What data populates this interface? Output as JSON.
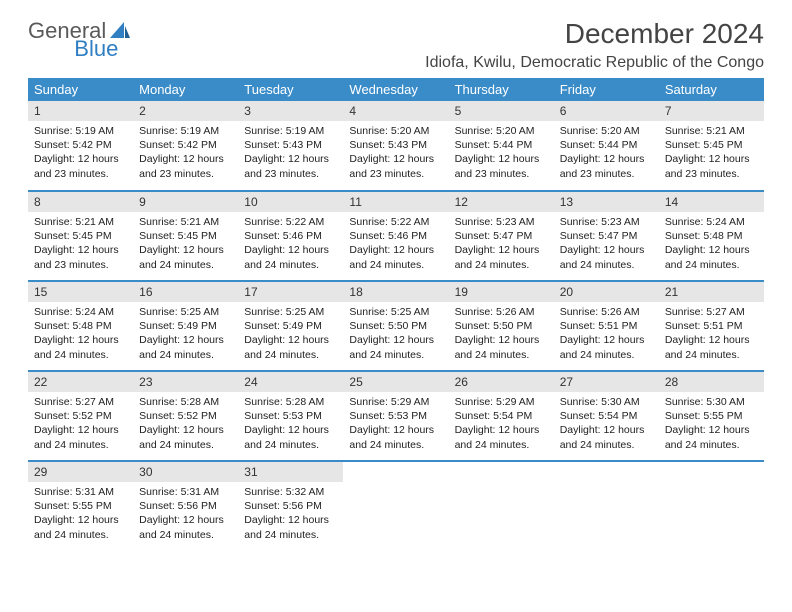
{
  "brand": {
    "part1": "General",
    "part2": "Blue"
  },
  "title": "December 2024",
  "location": "Idiofa, Kwilu, Democratic Republic of the Congo",
  "colors": {
    "header_bg": "#3a8cc9",
    "header_text": "#ffffff",
    "daynum_bg": "#e6e6e6",
    "rule": "#3a8cc9",
    "text": "#222222",
    "brand_blue": "#2f7fc2"
  },
  "weekdays": [
    "Sunday",
    "Monday",
    "Tuesday",
    "Wednesday",
    "Thursday",
    "Friday",
    "Saturday"
  ],
  "days": [
    {
      "n": "1",
      "sr": "5:19 AM",
      "ss": "5:42 PM",
      "dl": "12 hours and 23 minutes."
    },
    {
      "n": "2",
      "sr": "5:19 AM",
      "ss": "5:42 PM",
      "dl": "12 hours and 23 minutes."
    },
    {
      "n": "3",
      "sr": "5:19 AM",
      "ss": "5:43 PM",
      "dl": "12 hours and 23 minutes."
    },
    {
      "n": "4",
      "sr": "5:20 AM",
      "ss": "5:43 PM",
      "dl": "12 hours and 23 minutes."
    },
    {
      "n": "5",
      "sr": "5:20 AM",
      "ss": "5:44 PM",
      "dl": "12 hours and 23 minutes."
    },
    {
      "n": "6",
      "sr": "5:20 AM",
      "ss": "5:44 PM",
      "dl": "12 hours and 23 minutes."
    },
    {
      "n": "7",
      "sr": "5:21 AM",
      "ss": "5:45 PM",
      "dl": "12 hours and 23 minutes."
    },
    {
      "n": "8",
      "sr": "5:21 AM",
      "ss": "5:45 PM",
      "dl": "12 hours and 23 minutes."
    },
    {
      "n": "9",
      "sr": "5:21 AM",
      "ss": "5:45 PM",
      "dl": "12 hours and 24 minutes."
    },
    {
      "n": "10",
      "sr": "5:22 AM",
      "ss": "5:46 PM",
      "dl": "12 hours and 24 minutes."
    },
    {
      "n": "11",
      "sr": "5:22 AM",
      "ss": "5:46 PM",
      "dl": "12 hours and 24 minutes."
    },
    {
      "n": "12",
      "sr": "5:23 AM",
      "ss": "5:47 PM",
      "dl": "12 hours and 24 minutes."
    },
    {
      "n": "13",
      "sr": "5:23 AM",
      "ss": "5:47 PM",
      "dl": "12 hours and 24 minutes."
    },
    {
      "n": "14",
      "sr": "5:24 AM",
      "ss": "5:48 PM",
      "dl": "12 hours and 24 minutes."
    },
    {
      "n": "15",
      "sr": "5:24 AM",
      "ss": "5:48 PM",
      "dl": "12 hours and 24 minutes."
    },
    {
      "n": "16",
      "sr": "5:25 AM",
      "ss": "5:49 PM",
      "dl": "12 hours and 24 minutes."
    },
    {
      "n": "17",
      "sr": "5:25 AM",
      "ss": "5:49 PM",
      "dl": "12 hours and 24 minutes."
    },
    {
      "n": "18",
      "sr": "5:25 AM",
      "ss": "5:50 PM",
      "dl": "12 hours and 24 minutes."
    },
    {
      "n": "19",
      "sr": "5:26 AM",
      "ss": "5:50 PM",
      "dl": "12 hours and 24 minutes."
    },
    {
      "n": "20",
      "sr": "5:26 AM",
      "ss": "5:51 PM",
      "dl": "12 hours and 24 minutes."
    },
    {
      "n": "21",
      "sr": "5:27 AM",
      "ss": "5:51 PM",
      "dl": "12 hours and 24 minutes."
    },
    {
      "n": "22",
      "sr": "5:27 AM",
      "ss": "5:52 PM",
      "dl": "12 hours and 24 minutes."
    },
    {
      "n": "23",
      "sr": "5:28 AM",
      "ss": "5:52 PM",
      "dl": "12 hours and 24 minutes."
    },
    {
      "n": "24",
      "sr": "5:28 AM",
      "ss": "5:53 PM",
      "dl": "12 hours and 24 minutes."
    },
    {
      "n": "25",
      "sr": "5:29 AM",
      "ss": "5:53 PM",
      "dl": "12 hours and 24 minutes."
    },
    {
      "n": "26",
      "sr": "5:29 AM",
      "ss": "5:54 PM",
      "dl": "12 hours and 24 minutes."
    },
    {
      "n": "27",
      "sr": "5:30 AM",
      "ss": "5:54 PM",
      "dl": "12 hours and 24 minutes."
    },
    {
      "n": "28",
      "sr": "5:30 AM",
      "ss": "5:55 PM",
      "dl": "12 hours and 24 minutes."
    },
    {
      "n": "29",
      "sr": "5:31 AM",
      "ss": "5:55 PM",
      "dl": "12 hours and 24 minutes."
    },
    {
      "n": "30",
      "sr": "5:31 AM",
      "ss": "5:56 PM",
      "dl": "12 hours and 24 minutes."
    },
    {
      "n": "31",
      "sr": "5:32 AM",
      "ss": "5:56 PM",
      "dl": "12 hours and 24 minutes."
    }
  ],
  "labels": {
    "sunrise": "Sunrise: ",
    "sunset": "Sunset: ",
    "daylight": "Daylight: "
  }
}
